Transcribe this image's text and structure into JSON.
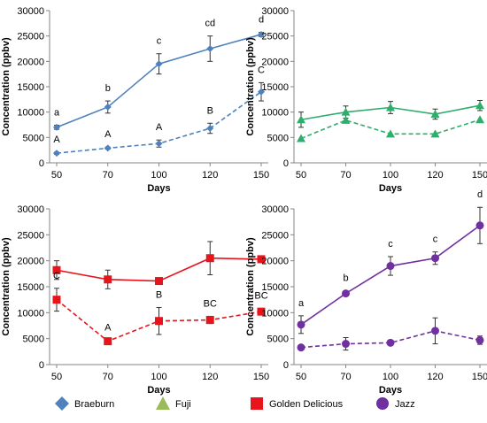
{
  "chart_data": [
    {
      "type": "line",
      "x": [
        50,
        70,
        100,
        120,
        150
      ],
      "xlabel": "Days",
      "ylabel": "Concentration (ppbv)",
      "ylim": [
        0,
        30000
      ],
      "yticks": [
        0,
        5000,
        10000,
        15000,
        20000,
        25000,
        30000
      ],
      "grid": false,
      "color": "#4f81bd",
      "marker": "diamond",
      "series": [
        {
          "style": "solid",
          "values": [
            7000,
            11000,
            19500,
            22500,
            25300
          ],
          "errors": [
            400,
            1200,
            2000,
            2500,
            400
          ],
          "letters": [
            "a",
            "b",
            "c",
            "cd",
            "d"
          ]
        },
        {
          "style": "dashed",
          "values": [
            1900,
            2900,
            3800,
            6800,
            14000
          ],
          "errors": [
            200,
            200,
            700,
            1000,
            1800
          ],
          "letters": [
            "A",
            "A",
            "A",
            "B",
            "C"
          ]
        }
      ]
    },
    {
      "type": "line",
      "x": [
        50,
        70,
        100,
        120,
        150
      ],
      "xlabel": "Days",
      "ylabel": "Concentration (ppbv)",
      "ylim": [
        0,
        30000
      ],
      "yticks": [
        0,
        5000,
        10000,
        15000,
        20000,
        25000,
        30000
      ],
      "grid": false,
      "color": "#2ead6b",
      "marker": "triangle",
      "series": [
        {
          "style": "solid",
          "values": [
            8500,
            10000,
            10900,
            9600,
            11300
          ],
          "errors": [
            1500,
            1200,
            1200,
            1000,
            1000
          ],
          "letters": [
            "",
            "",
            "",
            "",
            ""
          ]
        },
        {
          "style": "dashed",
          "values": [
            4800,
            8400,
            5700,
            5700,
            8500
          ],
          "errors": [
            0,
            0,
            0,
            0,
            0
          ],
          "letters": [
            "",
            "",
            "",
            "",
            ""
          ]
        }
      ]
    },
    {
      "type": "line",
      "x": [
        50,
        70,
        100,
        120,
        150
      ],
      "xlabel": "Days",
      "ylabel": "Concentration (ppbv)",
      "ylim": [
        0,
        30000
      ],
      "yticks": [
        0,
        5000,
        10000,
        15000,
        20000,
        25000,
        30000
      ],
      "grid": false,
      "color": "#e8141c",
      "marker": "square",
      "series": [
        {
          "style": "solid",
          "values": [
            18200,
            16400,
            16100,
            20500,
            20300
          ],
          "errors": [
            1800,
            1800,
            0,
            3200,
            0
          ],
          "letters": [
            "",
            "",
            "",
            "",
            ""
          ]
        },
        {
          "style": "dashed",
          "values": [
            12500,
            4500,
            8400,
            8600,
            10200
          ],
          "errors": [
            2200,
            200,
            2600,
            700,
            600
          ],
          "letters": [
            "C",
            "A",
            "B",
            "BC",
            "BC"
          ]
        }
      ]
    },
    {
      "type": "line",
      "x": [
        50,
        70,
        100,
        120,
        150
      ],
      "xlabel": "Days",
      "ylabel": "Concentration (ppbv)",
      "ylim": [
        0,
        30000
      ],
      "yticks": [
        0,
        5000,
        10000,
        15000,
        20000,
        25000,
        30000
      ],
      "grid": false,
      "color": "#7030a0",
      "marker": "circle",
      "series": [
        {
          "style": "solid",
          "values": [
            7700,
            13700,
            19000,
            20500,
            26800
          ],
          "errors": [
            1700,
            500,
            1800,
            1200,
            3500
          ],
          "letters": [
            "a",
            "b",
            "c",
            "c",
            "d"
          ]
        },
        {
          "style": "dashed",
          "values": [
            3300,
            4000,
            4200,
            6500,
            4700
          ],
          "errors": [
            0,
            1200,
            0,
            2500,
            800
          ],
          "letters": [
            "",
            "",
            "",
            "",
            ""
          ]
        }
      ]
    }
  ],
  "legend": {
    "placement": "bottom",
    "items": [
      {
        "label": "Braeburn",
        "color": "#4f81bd",
        "marker": "diamond"
      },
      {
        "label": "Fuji",
        "color": "#9bbb59",
        "marker": "triangle"
      },
      {
        "label": "Golden Delicious",
        "color": "#e8141c",
        "marker": "square"
      },
      {
        "label": "Jazz",
        "color": "#7030a0",
        "marker": "circle"
      }
    ]
  }
}
